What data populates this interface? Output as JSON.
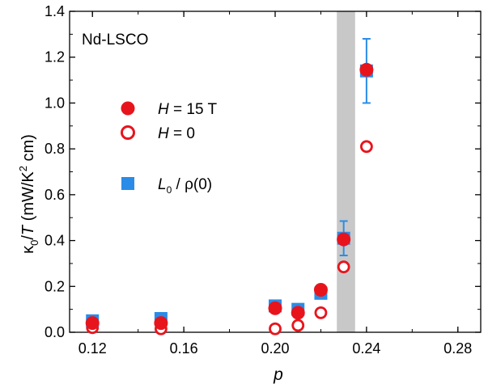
{
  "chart_data": {
    "type": "scatter",
    "title": "",
    "annotation": "Nd-LSCO",
    "xlabel": "p",
    "ylabel_parts": {
      "kappa": "κ",
      "sub0": "0",
      "rest": "/",
      "T": "T",
      "units_open": " (mW/K",
      "sup2": "2",
      "units_close": " cm)"
    },
    "xlim": [
      0.11,
      0.29
    ],
    "ylim": [
      0.0,
      1.4
    ],
    "xticks": [
      0.12,
      0.16,
      0.2,
      0.24,
      0.28
    ],
    "xtick_labels": [
      "0.12",
      "0.16",
      "0.20",
      "0.24",
      "0.28"
    ],
    "yticks": [
      0.0,
      0.2,
      0.4,
      0.6,
      0.8,
      1.0,
      1.2,
      1.4
    ],
    "ytick_labels": [
      "0.0",
      "0.2",
      "0.4",
      "0.6",
      "0.8",
      "1.0",
      "1.2",
      "1.4"
    ],
    "shaded_band": {
      "x": [
        0.227,
        0.235
      ],
      "color": "#c8c8c8"
    },
    "grid": false,
    "legend_position": "upper-left",
    "series": [
      {
        "name_parts": {
          "var": "H",
          "rest": " = 15 T"
        },
        "marker": "filled-circle",
        "color": "#e8141c",
        "x": [
          0.12,
          0.15,
          0.2,
          0.21,
          0.22,
          0.23,
          0.24
        ],
        "y": [
          0.04,
          0.04,
          0.105,
          0.085,
          0.185,
          0.405,
          1.145
        ]
      },
      {
        "name_parts": {
          "var": "H",
          "rest": " = 0"
        },
        "marker": "open-circle",
        "color": "#e8141c",
        "x": [
          0.12,
          0.15,
          0.2,
          0.21,
          0.22,
          0.23,
          0.24
        ],
        "y": [
          0.02,
          0.015,
          0.015,
          0.03,
          0.085,
          0.285,
          0.81
        ]
      },
      {
        "name_parts": {
          "var": "L",
          "sub": "0",
          "rest": " / ρ(0)"
        },
        "marker": "square",
        "color": "#2a8ce8",
        "x": [
          0.12,
          0.15,
          0.2,
          0.21,
          0.22,
          0.23,
          0.24
        ],
        "y": [
          0.05,
          0.06,
          0.115,
          0.1,
          0.17,
          0.41,
          1.14
        ],
        "error": [
          null,
          null,
          null,
          null,
          null,
          0.075,
          0.14
        ]
      }
    ]
  }
}
